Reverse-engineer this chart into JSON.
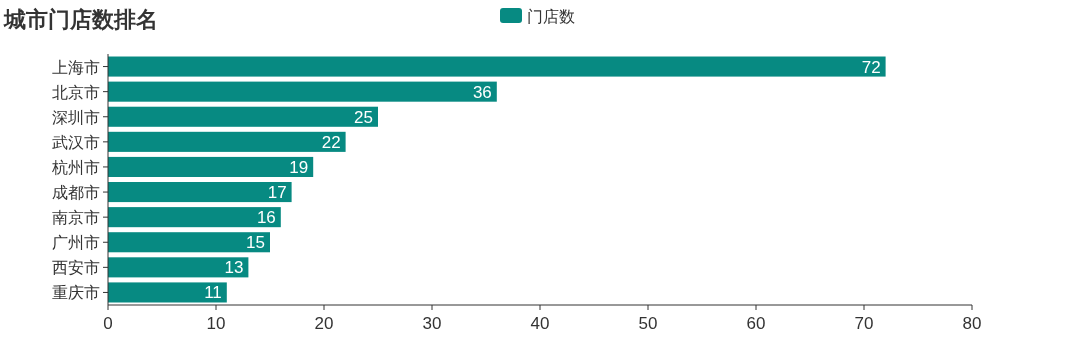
{
  "chart_data": {
    "type": "bar",
    "title": "城市门店数排名",
    "orientation": "horizontal",
    "categories": [
      "上海市",
      "北京市",
      "深圳市",
      "武汉市",
      "杭州市",
      "成都市",
      "南京市",
      "广州市",
      "西安市",
      "重庆市"
    ],
    "series": [
      {
        "name": "门店数",
        "color": "#078a82",
        "values": [
          72,
          36,
          25,
          22,
          19,
          17,
          16,
          15,
          13,
          11
        ]
      }
    ],
    "xlim": [
      0,
      80
    ],
    "xticks": [
      0,
      10,
      20,
      30,
      40,
      50,
      60,
      70,
      80
    ],
    "data_labels": true,
    "legend": "top",
    "grid": false
  }
}
